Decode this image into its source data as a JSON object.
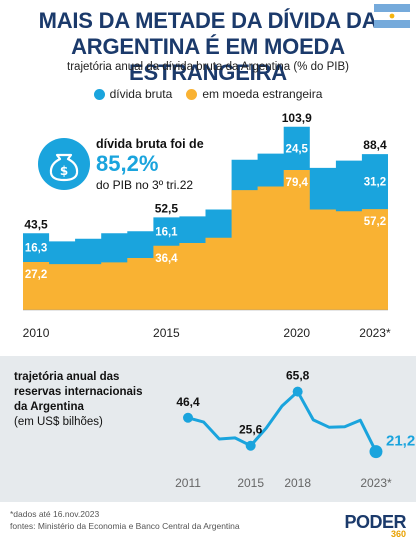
{
  "header": {
    "title_line1": "MAIS DA METADE DA DÍVIDA DA",
    "title_line2": "ARGENTINA É EM MOEDA ESTRANGEIRA",
    "subtitle": "trajetória anual da dívida bruta da Argentina (% do PIB)"
  },
  "colors": {
    "title": "#1b3a6b",
    "divida_bruta": "#1aa4dd",
    "moeda_estrangeira": "#f9b233",
    "reserves_bg": "#e6eaed"
  },
  "callout": {
    "lead": "dívida bruta foi de",
    "value": "85,2%",
    "tail": "do PIB no 3º tri.22",
    "icon": "money-bag-icon"
  },
  "chart_data": [
    {
      "type": "area",
      "title": "",
      "x": [
        2010,
        2011,
        2012,
        2013,
        2014,
        2015,
        2016,
        2017,
        2018,
        2019,
        2020,
        2021,
        2022,
        2023
      ],
      "series": [
        {
          "name": "dívida bruta",
          "values": [
            43.5,
            38.9,
            40.4,
            43.5,
            44.7,
            52.5,
            53.1,
            57.0,
            85.2,
            88.7,
            103.9,
            80.6,
            84.7,
            88.4
          ]
        },
        {
          "name": "em moeda estrangeira",
          "values": [
            27.2,
            26.0,
            26.0,
            27.0,
            29.5,
            36.4,
            38.0,
            41.0,
            68.0,
            70.0,
            79.4,
            57.0,
            56.0,
            57.2
          ]
        }
      ],
      "difference_labels": [
        {
          "x": 2010,
          "value": "16,3"
        },
        {
          "x": 2015,
          "value": "16,1"
        },
        {
          "x": 2020,
          "value": "24,5"
        },
        {
          "x": 2023,
          "value": "31,2"
        }
      ],
      "total_labels": [
        {
          "x": 2010,
          "value": "43,5"
        },
        {
          "x": 2015,
          "value": "52,5"
        },
        {
          "x": 2020,
          "value": "103,9"
        },
        {
          "x": 2023,
          "value": "88,4"
        }
      ],
      "foreign_labels": [
        {
          "x": 2010,
          "value": "27,2"
        },
        {
          "x": 2015,
          "value": "36,4"
        },
        {
          "x": 2020,
          "value": "79,4"
        },
        {
          "x": 2023,
          "value": "57,2"
        }
      ],
      "x_ticks": [
        "2010",
        "2015",
        "2020",
        "2023*"
      ],
      "ylim": [
        0,
        110
      ],
      "grid": false
    },
    {
      "type": "line",
      "title_line1": "trajetória anual das",
      "title_line2": "reservas internacionais",
      "title_line3": "da Argentina",
      "unit": "(em US$ bilhões)",
      "x": [
        2011,
        2012,
        2013,
        2014,
        2015,
        2016,
        2017,
        2018,
        2019,
        2020,
        2021,
        2022,
        2023
      ],
      "values": [
        46.4,
        43.2,
        30.6,
        31.4,
        25.6,
        38.8,
        55.1,
        65.8,
        44.8,
        39.4,
        39.7,
        44.6,
        21.2
      ],
      "point_labels": [
        {
          "x": 2011,
          "value": "46,4"
        },
        {
          "x": 2015,
          "value": "25,6"
        },
        {
          "x": 2018,
          "value": "65,8"
        },
        {
          "x": 2023,
          "value": "21,2"
        }
      ],
      "x_ticks": [
        "2011",
        "2015",
        "2018",
        "2023*"
      ],
      "ylim": [
        15,
        70
      ],
      "color": "#1aa4dd"
    }
  ],
  "footer": {
    "note": "*dados até 16.nov.2023",
    "sources": "fontes: Ministério da Economia e Banco Central da Argentina",
    "brand": "PODER",
    "brand_sub": "360"
  }
}
